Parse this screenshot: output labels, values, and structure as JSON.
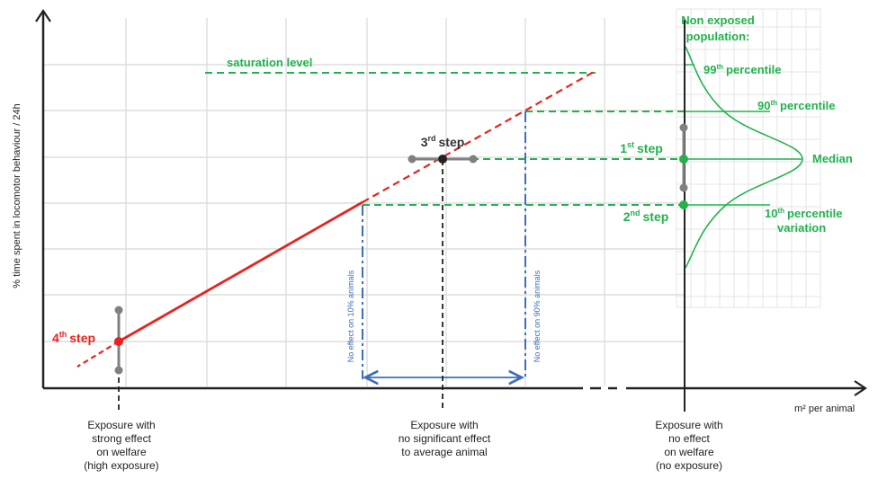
{
  "axes": {
    "y_label": "% time spent in locomotor behaviour / 24h",
    "x_label": "m² per animal"
  },
  "labels": {
    "saturation": "saturation level",
    "non_exposed_line1": "Non exposed",
    "non_exposed_line2": "population:",
    "p99_num": "99",
    "p99_sup": "th",
    "p99_text": "percentile",
    "p90_num": "90",
    "p90_sup": "th",
    "p90_text": "percentile",
    "median": "Median",
    "p10_num": "10",
    "p10_sup": "th",
    "p10_text": "percentile",
    "variation": "variation",
    "step1_num": "1",
    "step1_sup": "st",
    "step1_text": "step",
    "step2_num": "2",
    "step2_sup": "nd",
    "step2_text": "step",
    "step3_num": "3",
    "step3_sup": "rd",
    "step3_text": "step",
    "step4_num": "4",
    "step4_sup": "th",
    "step4_text": "step",
    "no_effect_10": "No effect on 10% animals",
    "no_effect_90": "No effect on 90% animals"
  },
  "captions": {
    "left": [
      "Exposure with",
      "strong effect",
      "on welfare",
      "(high exposure)"
    ],
    "middle": [
      "Exposure with",
      "no significant effect",
      "to average animal"
    ],
    "right": [
      "Exposure with",
      "no effect",
      "on welfare",
      "(no exposure)"
    ]
  },
  "colors": {
    "red": "#e8231f",
    "green": "#22b24c",
    "blue": "#3d6fb4",
    "grid": "#d8d8d8",
    "axis": "#222222",
    "grey_marker": "#808080"
  }
}
